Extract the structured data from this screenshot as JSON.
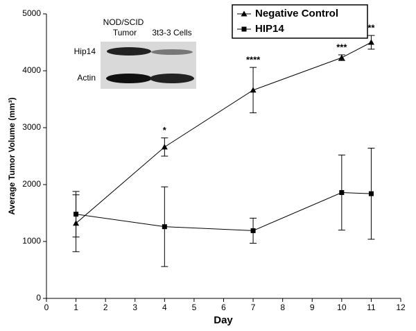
{
  "chart_data": {
    "type": "line",
    "xlabel": "Day",
    "ylabel": "Average Tumor Volume (mm³)",
    "xlim": [
      0,
      12
    ],
    "xticks": [
      0,
      1,
      2,
      3,
      4,
      5,
      6,
      7,
      8,
      9,
      10,
      11,
      12
    ],
    "ylim": [
      0,
      5000
    ],
    "yticks": [
      0,
      1000,
      2000,
      3000,
      4000,
      5000
    ],
    "legend": "upper right",
    "series": [
      {
        "name": "Negative Control",
        "color": "#000000",
        "marker": "triangle",
        "x": [
          1,
          4,
          7,
          10,
          11
        ],
        "values": [
          1320,
          2660,
          3660,
          4230,
          4500
        ],
        "errors": [
          500,
          160,
          400,
          50,
          120
        ]
      },
      {
        "name": "HIP14",
        "color": "#000000",
        "marker": "square",
        "x": [
          1,
          4,
          7,
          10,
          11
        ],
        "values": [
          1480,
          1260,
          1190,
          1860,
          1840
        ],
        "errors": [
          400,
          700,
          220,
          660,
          800
        ]
      }
    ],
    "annotations": [
      {
        "x": 4,
        "text": "*"
      },
      {
        "x": 7,
        "text": "****"
      },
      {
        "x": 10,
        "text": "***"
      },
      {
        "x": 11,
        "text": "**"
      }
    ],
    "inset": {
      "column_labels": [
        [
          "NOD/SCID",
          "Tumor"
        ],
        [
          "3t3-3 Cells"
        ]
      ],
      "row_labels": [
        "Hip14",
        "Actin"
      ]
    }
  }
}
